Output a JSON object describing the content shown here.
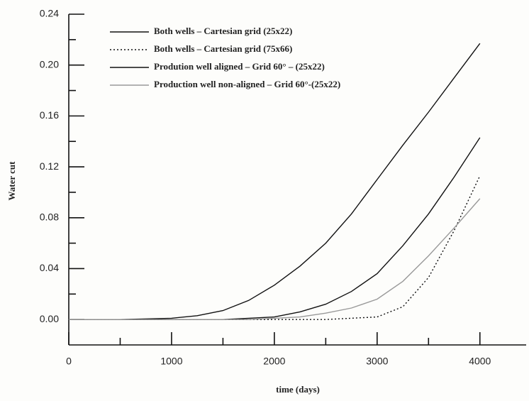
{
  "chart_data": {
    "type": "line",
    "xlabel": "time (days)",
    "ylabel": "Water cut",
    "x": [
      0,
      500,
      1000,
      1250,
      1500,
      1750,
      2000,
      2250,
      2500,
      2750,
      3000,
      3250,
      3500,
      3750,
      4000
    ],
    "series": [
      {
        "name": "Both wells – Cartesian grid (25x22)",
        "color": "#111111",
        "dash": "solid",
        "values": [
          0,
          0,
          0.001,
          0.003,
          0.007,
          0.015,
          0.027,
          0.042,
          0.06,
          0.083,
          0.11,
          0.137,
          0.163,
          0.19,
          0.217
        ]
      },
      {
        "name": "Both wells – Cartesian grid (75x66)",
        "color": "#111111",
        "dash": "dotted",
        "values": [
          0,
          0,
          0,
          0,
          0,
          0,
          0,
          0,
          0,
          0.001,
          0.002,
          0.01,
          0.033,
          0.07,
          0.113
        ]
      },
      {
        "name": "Prodution well aligned – Grid 60° – (25x22)",
        "color": "#111111",
        "dash": "solid",
        "values": [
          0,
          0,
          0,
          0,
          0,
          0.001,
          0.002,
          0.006,
          0.012,
          0.022,
          0.036,
          0.058,
          0.083,
          0.112,
          0.143
        ]
      },
      {
        "name": "Production well non-aligned – Grid 60°-(25x22)",
        "color": "#999999",
        "dash": "solid",
        "values": [
          0,
          0,
          0,
          0,
          0,
          0,
          0.001,
          0.002,
          0.005,
          0.009,
          0.016,
          0.03,
          0.05,
          0.072,
          0.095
        ]
      }
    ],
    "xlim": [
      0,
      4450
    ],
    "ylim": [
      -0.02,
      0.24
    ],
    "xticks": [
      0,
      1000,
      2000,
      3000,
      4000
    ],
    "xminorticks": [
      500,
      1500,
      2500,
      3500
    ],
    "yticks": [
      {
        "value": 0,
        "label": "0.00"
      },
      {
        "value": 0.04,
        "label": "0.04"
      },
      {
        "value": 0.08,
        "label": "0.08"
      },
      {
        "value": 0.12,
        "label": "0.12"
      },
      {
        "value": 0.16,
        "label": "0.16"
      },
      {
        "value": 0.2,
        "label": "0.20"
      },
      {
        "value": 0.24,
        "label": "0.24"
      }
    ],
    "yminorticks": [
      0.02,
      0.06,
      0.1,
      0.14,
      0.18,
      0.22
    ],
    "legend": "upper left",
    "grid": false
  }
}
